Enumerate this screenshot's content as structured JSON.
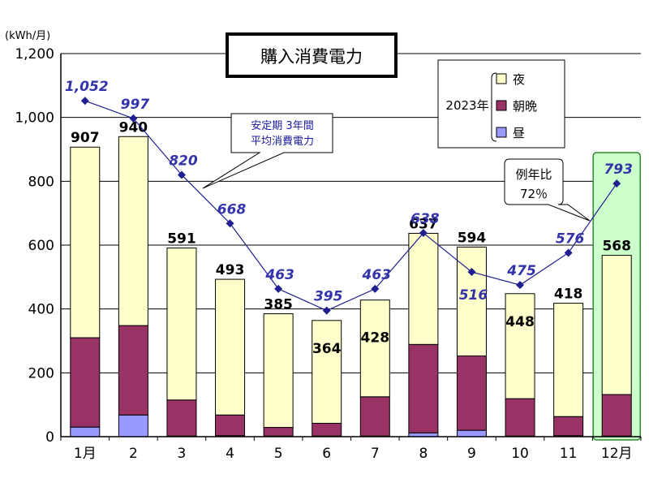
{
  "chart_data": {
    "type": "bar",
    "title": "購入消費電力",
    "ylabel": "(kWh/月)",
    "ylim": [
      0,
      1200
    ],
    "yticks": [
      "0",
      "200",
      "400",
      "600",
      "800",
      "1,000",
      "1,200"
    ],
    "grid": true,
    "categories": [
      "1月",
      "2",
      "3",
      "4",
      "5",
      "6",
      "7",
      "8",
      "9",
      "10",
      "11",
      "12月"
    ],
    "stack_totals": [
      907,
      940,
      591,
      493,
      385,
      364,
      428,
      637,
      594,
      448,
      418,
      568
    ],
    "series": [
      {
        "name": "昼",
        "color": "#9999ff",
        "values": [
          30,
          68,
          2,
          3,
          2,
          2,
          2,
          12,
          20,
          2,
          3,
          2
        ]
      },
      {
        "name": "朝晩",
        "color": "#993366",
        "values": [
          280,
          280,
          113,
          65,
          27,
          40,
          123,
          277,
          233,
          117,
          60,
          130
        ]
      },
      {
        "name": "夜",
        "color": "#ffffcc",
        "values": [
          597,
          592,
          476,
          425,
          356,
          322,
          303,
          348,
          341,
          329,
          355,
          436
        ]
      }
    ],
    "line_series": {
      "color": "#1f1f8f",
      "label_color": "#3333aa",
      "values": [
        1052,
        997,
        820,
        668,
        463,
        395,
        463,
        638,
        516,
        475,
        576,
        793
      ],
      "labels": [
        "1,052",
        "997",
        "820",
        "668",
        "463",
        "395",
        "463",
        "638",
        "516",
        "475",
        "576",
        "793"
      ]
    },
    "legend": {
      "placement": "top-right",
      "year_label": "2023年",
      "entries": [
        "夜",
        "朝晩",
        "昼"
      ]
    },
    "annotations": {
      "callout_line1": "安定期 3年間",
      "callout_line2": "平均消費電力",
      "ratio_line1": "例年比",
      "ratio_line2": "72％"
    },
    "highlight_category": "12月",
    "highlight_color": "#ccffcc"
  }
}
